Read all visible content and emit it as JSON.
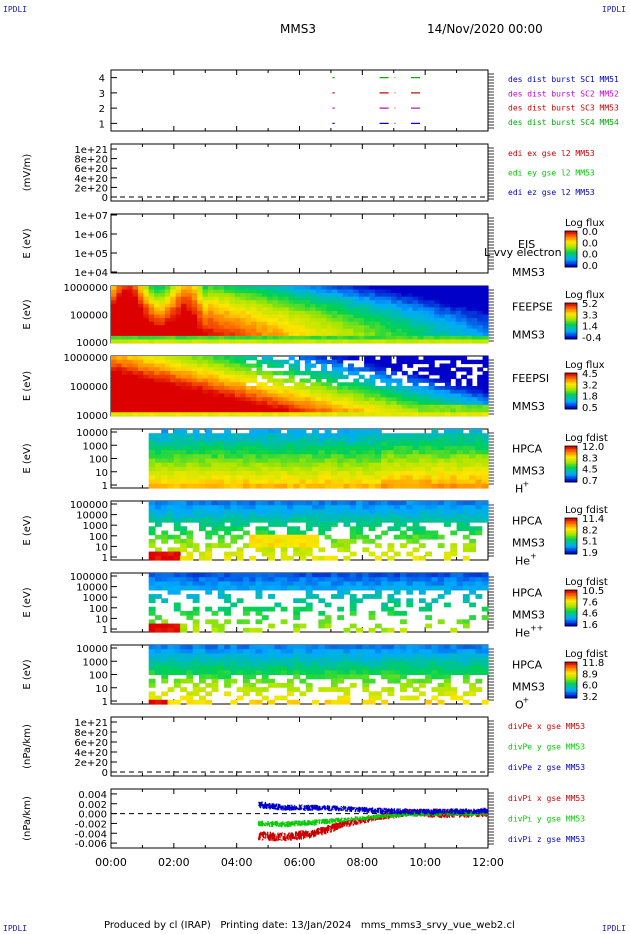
{
  "corners": {
    "tl": "IPDLI",
    "tr": "IPDLI",
    "bl": "IPDLI",
    "br": "IPDLI"
  },
  "header": {
    "spacecraft": "MMS3",
    "date": "14/Nov/2020 00:00"
  },
  "footer": {
    "text": "Produced by cl (IRAP)   Printing date: 13/Jan/2024   mms_mms3_srvy_vue_web2.cl"
  },
  "time_axis": [
    "00:00",
    "02:00",
    "04:00",
    "06:00",
    "08:00",
    "10:00",
    "12:00"
  ],
  "colors": {
    "sc1": "#0000cc",
    "sc2": "#cc00cc",
    "sc3": "#cc0000",
    "sc4": "#00aa00",
    "x": "#cc0000",
    "y": "#00cc00",
    "z": "#0000cc"
  },
  "chart_data": [
    {
      "type": "line",
      "name": "burst-panel",
      "ylim": [
        0.5,
        4.5
      ],
      "yticks": [
        "4",
        "3",
        "2",
        "1"
      ],
      "legend": [
        {
          "label": "des dist burst SC1 MM51",
          "color": "#0000cc"
        },
        {
          "label": "des dist burst SC2 MM52",
          "color": "#cc00cc"
        },
        {
          "label": "des dist burst SC3 MM53",
          "color": "#cc0000"
        },
        {
          "label": "des dist burst SC4 MM54",
          "color": "#00aa00"
        }
      ],
      "segments": [
        {
          "sc": 4,
          "t0": 7.05,
          "t1": 7.12
        },
        {
          "sc": 4,
          "t0": 8.55,
          "t1": 9.05
        },
        {
          "sc": 4,
          "t0": 9.55,
          "t1": 9.95
        },
        {
          "sc": 3,
          "t0": 7.05,
          "t1": 7.12
        },
        {
          "sc": 3,
          "t0": 8.55,
          "t1": 9.05
        },
        {
          "sc": 3,
          "t0": 9.55,
          "t1": 9.95
        },
        {
          "sc": 2,
          "t0": 7.05,
          "t1": 7.12
        },
        {
          "sc": 2,
          "t0": 8.55,
          "t1": 9.05
        },
        {
          "sc": 2,
          "t0": 9.55,
          "t1": 9.95
        },
        {
          "sc": 1,
          "t0": 7.05,
          "t1": 7.12
        },
        {
          "sc": 1,
          "t0": 8.55,
          "t1": 9.05
        },
        {
          "sc": 1,
          "t0": 9.55,
          "t1": 9.95
        }
      ]
    },
    {
      "type": "line",
      "name": "edi-panel",
      "ylabel": "(mV/m)",
      "yticks": [
        "1e+21",
        "8e+20",
        "6e+20",
        "4e+20",
        "2e+20",
        "0"
      ],
      "legend": [
        {
          "label": "edi ex gse l2 MM53",
          "color": "#cc0000"
        },
        {
          "label": "edi ey gse l2 MM53",
          "color": "#00cc00"
        },
        {
          "label": "edi ez gse l2 MM53",
          "color": "#0000cc"
        }
      ]
    },
    {
      "type": "heatmap",
      "name": "eis-panel",
      "ylabel": "E (eV)",
      "yticks": [
        "1e+07",
        "1e+06",
        "1e+05",
        "1e+04"
      ],
      "label": "EIS",
      "overlay": "L vvy electron to",
      "sc": "MMS3",
      "cbar_title": "Log flux",
      "cbar_ticks": [
        "0.0",
        "0.0",
        "0.0",
        "0.0"
      ]
    },
    {
      "type": "heatmap",
      "name": "feepse-panel",
      "ylabel": "E (eV)",
      "yticks": [
        "1000000",
        "100000",
        "10000"
      ],
      "label": "FEEPSE",
      "sc": "MMS3",
      "cbar_title": "Log flux",
      "cbar_ticks": [
        "5.2",
        "3.3",
        "1.4",
        "-0.4"
      ]
    },
    {
      "type": "heatmap",
      "name": "feepsi-panel",
      "ylabel": "E (eV)",
      "yticks": [
        "1000000",
        "100000",
        "10000"
      ],
      "label": "FEEPSI",
      "sc": "MMS3",
      "cbar_title": "Log flux",
      "cbar_ticks": [
        "4.5",
        "3.2",
        "1.8",
        "0.5"
      ]
    },
    {
      "type": "heatmap",
      "name": "hpca-h-panel",
      "ylabel": "E (eV)",
      "yticks": [
        "10000",
        "1000",
        "100",
        "10",
        "1"
      ],
      "label": "HPCA",
      "sc": "MMS3",
      "species": "H",
      "charge": "+",
      "cbar_title": "Log fdist",
      "cbar_ticks": [
        "12.0",
        "8.3",
        "4.5",
        "0.7"
      ]
    },
    {
      "type": "heatmap",
      "name": "hpca-he-panel",
      "ylabel": "E (eV)",
      "yticks": [
        "100000",
        "10000",
        "1000",
        "100",
        "10",
        "1"
      ],
      "label": "HPCA",
      "sc": "MMS3",
      "species": "He",
      "charge": "+",
      "cbar_title": "Log fdist",
      "cbar_ticks": [
        "11.4",
        "8.2",
        "5.1",
        "1.9"
      ]
    },
    {
      "type": "heatmap",
      "name": "hpca-hepp-panel",
      "ylabel": "E (eV)",
      "yticks": [
        "100000",
        "10000",
        "1000",
        "100",
        "10",
        "1"
      ],
      "label": "HPCA",
      "sc": "MMS3",
      "species": "He",
      "charge": "++",
      "cbar_title": "Log fdist",
      "cbar_ticks": [
        "10.5",
        "7.6",
        "4.6",
        "1.6"
      ]
    },
    {
      "type": "heatmap",
      "name": "hpca-o-panel",
      "ylabel": "E (eV)",
      "yticks": [
        "10000",
        "1000",
        "100",
        "10",
        "1"
      ],
      "label": "HPCA",
      "sc": "MMS3",
      "species": "O",
      "charge": "+",
      "cbar_title": "Log fdist",
      "cbar_ticks": [
        "11.8",
        "8.9",
        "6.0",
        "3.2"
      ]
    },
    {
      "type": "line",
      "name": "divpe-panel",
      "ylabel": "(nPa/km)",
      "yticks": [
        "1e+21",
        "8e+20",
        "6e+20",
        "4e+20",
        "2e+20",
        "0"
      ],
      "legend": [
        {
          "label": "divPe x gse MM53",
          "color": "#cc0000"
        },
        {
          "label": "divPe y gse MM53",
          "color": "#00cc00"
        },
        {
          "label": "divPe z gse MM53",
          "color": "#0000cc"
        }
      ]
    },
    {
      "type": "line",
      "name": "divpi-panel",
      "ylabel": "(nPa/km)",
      "ylim": [
        -0.007,
        0.005
      ],
      "yticks": [
        "0.004",
        "0.002",
        "0.000",
        "-0.002",
        "-0.004",
        "-0.006"
      ],
      "legend": [
        {
          "label": "divPi x gse MM53",
          "color": "#cc0000"
        },
        {
          "label": "divPi y gse MM53",
          "color": "#00cc00"
        },
        {
          "label": "divPi z gse MM53",
          "color": "#0000cc"
        }
      ],
      "series": [
        {
          "component": "x",
          "t": [
            4.7,
            5.5,
            6.5,
            7.5,
            8.5,
            9.5,
            10.5,
            11.5,
            12.0
          ],
          "center": [
            -0.0045,
            -0.0048,
            -0.004,
            -0.002,
            -0.0008,
            0.0002,
            0.0,
            0.0,
            0.0
          ],
          "spread": [
            0.0012,
            0.0012,
            0.0012,
            0.001,
            0.0008,
            0.001,
            0.0012,
            0.001,
            0.0008
          ]
        },
        {
          "component": "y",
          "t": [
            4.7,
            5.5,
            6.5,
            7.5,
            8.5,
            9.5,
            10.5,
            11.5,
            12.0
          ],
          "center": [
            -0.002,
            -0.0022,
            -0.0018,
            -0.0012,
            -0.0006,
            -0.0002,
            0.0,
            0.0,
            0.0
          ],
          "spread": [
            0.0008,
            0.0008,
            0.0008,
            0.0006,
            0.0006,
            0.0006,
            0.0006,
            0.0006,
            0.0005
          ]
        },
        {
          "component": "z",
          "t": [
            4.7,
            5.5,
            6.5,
            7.5,
            8.5,
            9.5,
            10.5,
            11.5,
            12.0
          ],
          "center": [
            0.0018,
            0.0012,
            0.0012,
            0.001,
            0.0006,
            0.0004,
            0.0004,
            0.0005,
            0.0006
          ],
          "spread": [
            0.001,
            0.0008,
            0.0008,
            0.0008,
            0.0008,
            0.0008,
            0.0008,
            0.0008,
            0.0008
          ]
        }
      ]
    }
  ]
}
